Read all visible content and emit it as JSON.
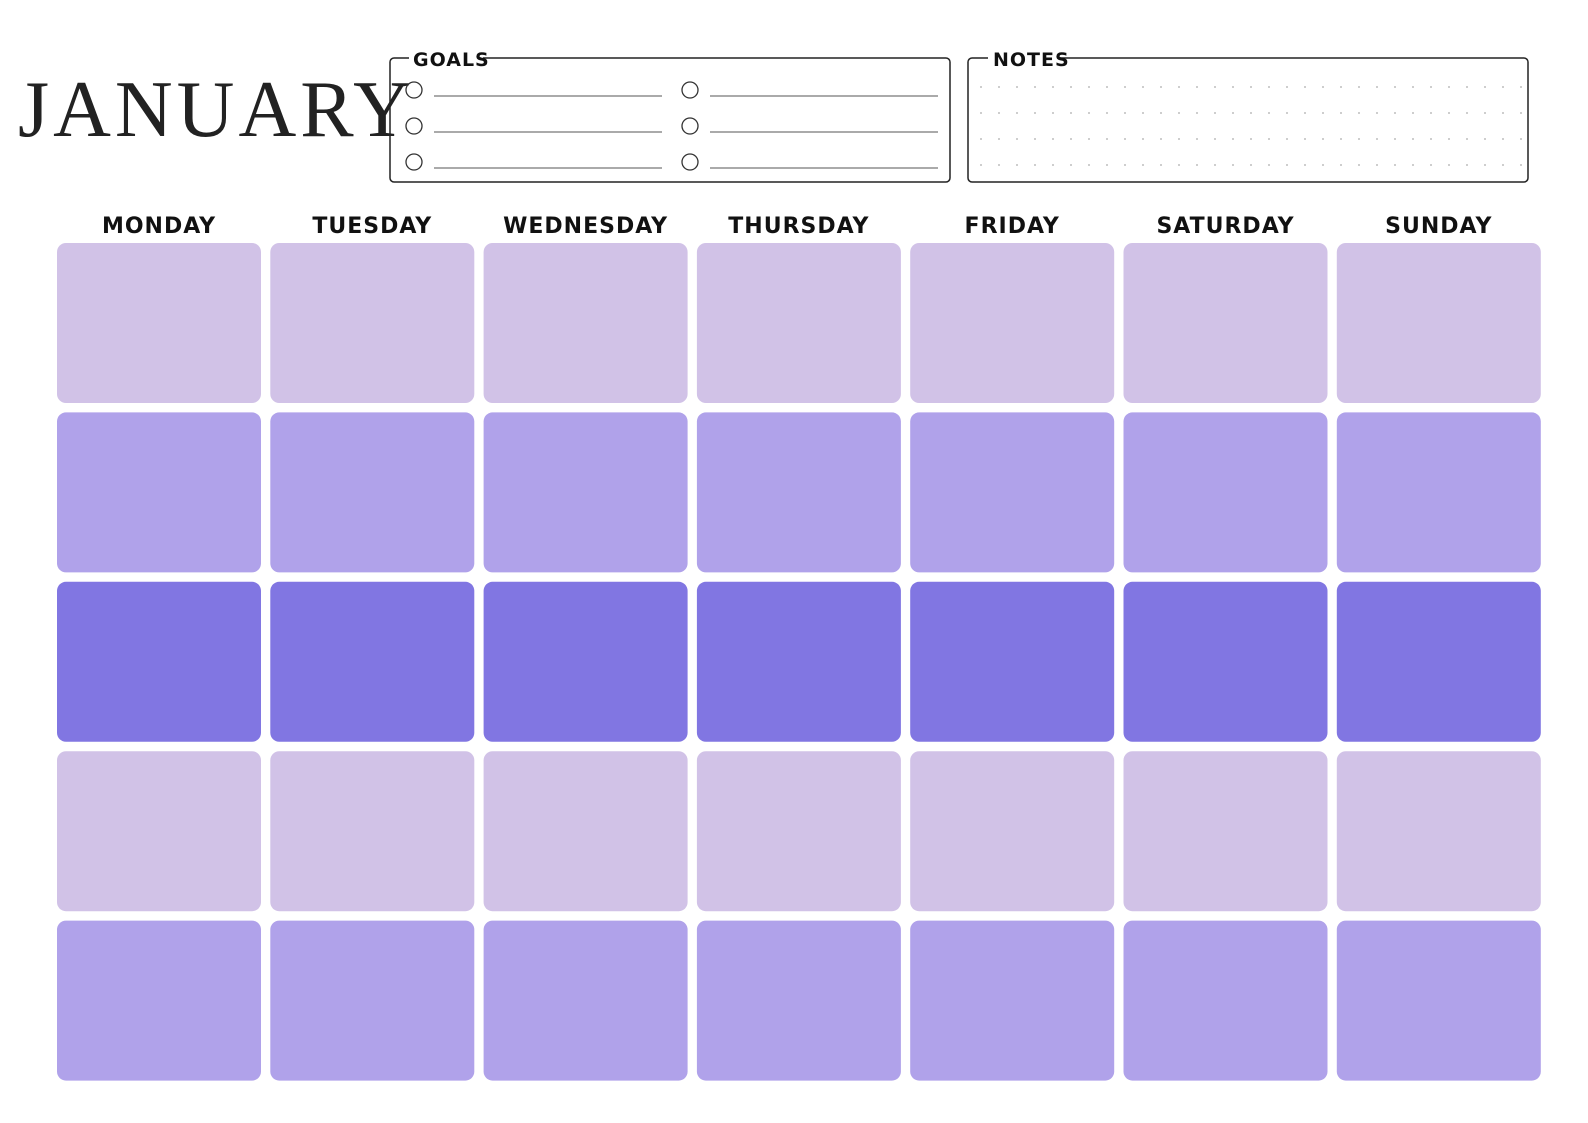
{
  "header": {
    "title": "JANUARY"
  },
  "goals": {
    "label": "GOALS"
  },
  "notes": {
    "label": "NOTES"
  },
  "calendar": {
    "days": [
      "MONDAY",
      "TUESDAY",
      "WEDNESDAY",
      "THURSDAY",
      "FRIDAY",
      "SATURDAY",
      "SUNDAY"
    ]
  }
}
